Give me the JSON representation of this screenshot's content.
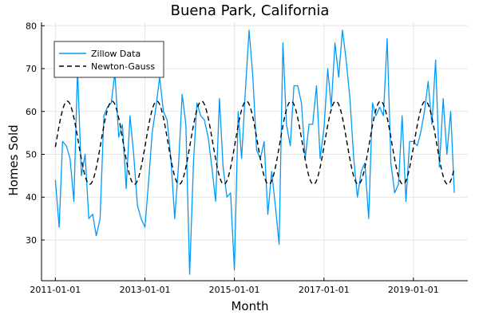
{
  "chart_data": {
    "type": "line",
    "title": "Buena Park, California",
    "xlabel": "Month",
    "ylabel": "Homes Sold",
    "x_start": "2011-01-01",
    "xlim": [
      "2010-09-10",
      "2020-03-20"
    ],
    "ylim": [
      20.5,
      80.8
    ],
    "xticks": [
      "2011-01-01",
      "2013-01-01",
      "2015-01-01",
      "2017-01-01",
      "2019-01-01"
    ],
    "yticks": [
      30,
      40,
      50,
      60,
      70,
      80
    ],
    "grid": true,
    "legend_position": "top-left",
    "series": [
      {
        "name": "Zillow Data",
        "style": "solid",
        "color": "#009af9",
        "values": [
          44,
          33,
          53,
          52,
          49,
          39,
          70,
          45,
          50,
          35,
          36,
          31,
          35,
          59,
          61,
          62,
          69,
          54,
          57,
          42,
          59,
          50,
          38,
          35,
          33,
          44,
          55,
          61,
          68,
          60,
          58,
          49,
          35,
          47,
          64,
          57,
          22,
          48,
          62,
          59,
          58,
          54,
          47,
          39,
          63,
          47,
          40,
          41,
          23,
          60,
          49,
          65,
          79,
          68,
          51,
          49,
          53,
          36,
          46,
          38,
          29,
          76,
          57,
          52,
          66,
          66,
          62,
          49,
          57,
          57,
          66,
          49,
          56,
          70,
          61,
          76,
          68,
          79,
          72,
          63,
          49,
          40,
          46,
          48,
          35,
          62,
          59,
          61,
          59,
          77,
          48,
          41,
          43,
          59,
          39,
          53,
          53,
          52,
          55,
          60,
          67,
          57,
          72,
          47,
          63,
          50,
          60,
          41
        ],
        "x_dates": [
          "2011-01-01",
          "2011-02-01",
          "2011-03-01",
          "2011-04-01",
          "2011-05-01",
          "2011-06-01",
          "2011-07-01",
          "2011-08-01",
          "2011-09-01",
          "2011-10-01",
          "2011-11-01",
          "2011-12-01",
          "2012-01-01",
          "2012-02-01",
          "2012-03-01",
          "2012-04-01",
          "2012-05-01",
          "2012-06-01",
          "2012-07-01",
          "2012-08-01",
          "2012-09-01",
          "2012-10-01",
          "2012-11-01",
          "2012-12-01",
          "2013-01-01",
          "2013-02-01",
          "2013-03-01",
          "2013-04-01",
          "2013-05-01",
          "2013-06-01",
          "2013-07-01",
          "2013-08-01",
          "2013-09-01",
          "2013-10-01",
          "2013-11-01",
          "2013-12-01",
          "2014-01-01",
          "2014-02-01",
          "2014-03-01",
          "2014-04-01",
          "2014-05-01",
          "2014-06-01",
          "2014-07-01",
          "2014-08-01",
          "2014-09-01",
          "2014-10-01",
          "2014-11-01",
          "2014-12-01",
          "2015-01-01",
          "2015-02-01",
          "2015-03-01",
          "2015-04-01",
          "2015-05-01",
          "2015-06-01",
          "2015-07-01",
          "2015-08-01",
          "2015-09-01",
          "2015-10-01",
          "2015-11-01",
          "2015-12-01",
          "2016-01-01",
          "2016-02-01",
          "2016-03-01",
          "2016-04-01",
          "2016-05-01",
          "2016-06-01",
          "2016-07-01",
          "2016-08-01",
          "2016-09-01",
          "2016-10-01",
          "2016-11-01",
          "2016-12-01",
          "2017-01-01",
          "2017-02-01",
          "2017-03-01",
          "2017-04-01",
          "2017-05-01",
          "2017-06-01",
          "2017-07-01",
          "2017-08-01",
          "2017-09-01",
          "2017-10-01",
          "2017-11-01",
          "2017-12-01",
          "2018-01-01",
          "2018-02-01",
          "2018-03-01",
          "2018-04-01",
          "2018-05-01",
          "2018-06-01",
          "2018-07-01",
          "2018-08-01",
          "2018-09-01",
          "2018-10-01",
          "2018-11-01",
          "2018-12-01",
          "2019-01-01",
          "2019-02-01",
          "2019-03-01",
          "2019-04-01",
          "2019-05-01",
          "2019-06-01",
          "2019-07-01",
          "2019-08-01",
          "2019-09-01",
          "2019-10-01",
          "2019-11-01",
          "2019-12-01"
        ]
      },
      {
        "name": "Newton-Gauss",
        "style": "dashed",
        "color": "#000000",
        "model": {
          "mean": 52.7,
          "amplitude": 9.7,
          "period_months": 12,
          "phase_month": 3.2
        }
      }
    ]
  }
}
